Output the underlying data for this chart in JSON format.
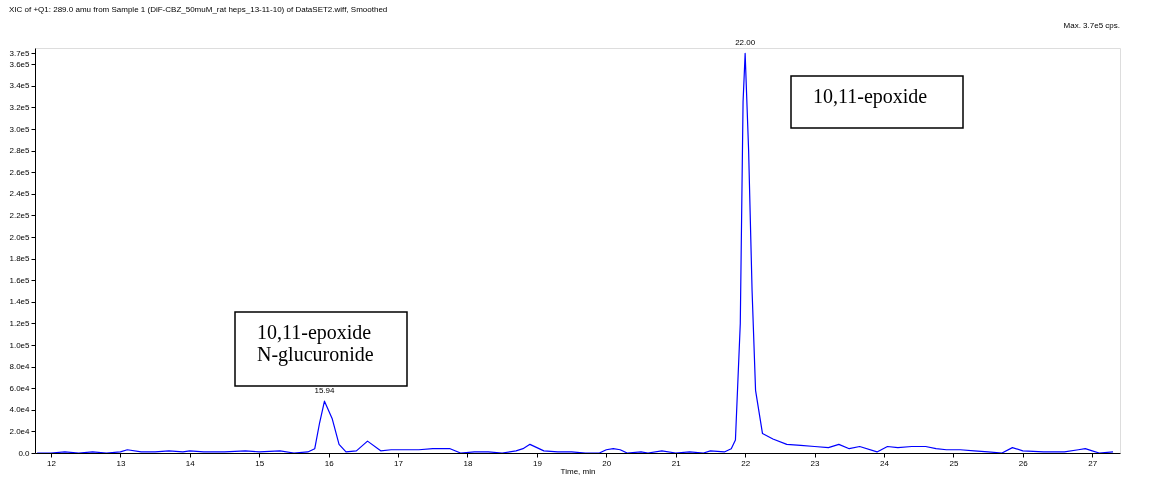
{
  "chart_data": {
    "type": "line",
    "title": "XIC of +Q1: 289.0 amu from Sample 1 (DiF-CBZ_50muM_rat heps_13-11-10) of DataSET2.wiff, Smoothed",
    "xlabel": "Time, min",
    "x": [
      11.8,
      12.0,
      12.2,
      12.4,
      12.6,
      12.8,
      13.0,
      13.1,
      13.3,
      13.5,
      13.7,
      13.9,
      14.0,
      14.2,
      14.5,
      14.8,
      15.0,
      15.3,
      15.5,
      15.7,
      15.8,
      15.87,
      15.94,
      16.05,
      16.15,
      16.25,
      16.4,
      16.56,
      16.75,
      16.9,
      17.1,
      17.3,
      17.5,
      17.75,
      17.9,
      18.1,
      18.3,
      18.5,
      18.7,
      18.8,
      18.9,
      19.0,
      19.1,
      19.3,
      19.5,
      19.7,
      19.9,
      20.0,
      20.1,
      20.2,
      20.3,
      20.5,
      20.6,
      20.8,
      21.0,
      21.2,
      21.4,
      21.5,
      21.7,
      21.8,
      21.86,
      21.93,
      21.97,
      22.0,
      22.05,
      22.1,
      22.15,
      22.25,
      22.4,
      22.6,
      22.8,
      23.0,
      23.2,
      23.35,
      23.5,
      23.65,
      23.9,
      24.05,
      24.2,
      24.4,
      24.6,
      24.75,
      24.9,
      25.1,
      25.3,
      25.5,
      25.7,
      25.85,
      26.0,
      26.3,
      26.6,
      26.8,
      26.9,
      27.0,
      27.1,
      27.3
    ],
    "series": [
      {
        "color": "#0000ff",
        "values": [
          0,
          0,
          1000,
          0,
          1000,
          0,
          1000,
          3000,
          1000,
          1000,
          2000,
          1000,
          2000,
          1000,
          1000,
          2000,
          1000,
          2000,
          0,
          1000,
          4000,
          28000,
          48000,
          32000,
          8000,
          1000,
          2000,
          11000,
          2000,
          3000,
          3000,
          3000,
          4000,
          4000,
          0,
          1000,
          1000,
          0,
          2000,
          4000,
          8000,
          5000,
          2000,
          1000,
          1000,
          0,
          0,
          3000,
          4000,
          3000,
          0,
          1000,
          0,
          2000,
          0,
          1000,
          0,
          2000,
          1000,
          4000,
          12000,
          120000,
          325000,
          370000,
          280000,
          150000,
          58000,
          18000,
          13000,
          8000,
          7000,
          6000,
          5000,
          8000,
          4000,
          6000,
          1000,
          6000,
          5000,
          6000,
          6000,
          4000,
          3000,
          3000,
          2000,
          1000,
          0,
          5000,
          2000,
          1000,
          1000,
          3000,
          4000,
          2000,
          0,
          1000
        ]
      }
    ],
    "xlim": [
      11.77,
      27.4
    ],
    "xticks": [
      12,
      13,
      14,
      15,
      16,
      17,
      18,
      19,
      20,
      21,
      22,
      23,
      24,
      25,
      26,
      27
    ],
    "ylim": [
      0,
      375000
    ],
    "yticks": [
      {
        "value": 0,
        "label": "0.0"
      },
      {
        "value": 20000,
        "label": "2.0e4"
      },
      {
        "value": 40000,
        "label": "4.0e4"
      },
      {
        "value": 60000,
        "label": "6.0e4"
      },
      {
        "value": 80000,
        "label": "8.0e4"
      },
      {
        "value": 100000,
        "label": "1.0e5"
      },
      {
        "value": 120000,
        "label": "1.2e5"
      },
      {
        "value": 140000,
        "label": "1.4e5"
      },
      {
        "value": 160000,
        "label": "1.6e5"
      },
      {
        "value": 180000,
        "label": "1.8e5"
      },
      {
        "value": 200000,
        "label": "2.0e5"
      },
      {
        "value": 220000,
        "label": "2.2e5"
      },
      {
        "value": 240000,
        "label": "2.4e5"
      },
      {
        "value": 260000,
        "label": "2.6e5"
      },
      {
        "value": 280000,
        "label": "2.8e5"
      },
      {
        "value": 300000,
        "label": "3.0e5"
      },
      {
        "value": 320000,
        "label": "3.2e5"
      },
      {
        "value": 340000,
        "label": "3.4e5"
      },
      {
        "value": 360000,
        "label": "3.6e5"
      },
      {
        "value": 370000,
        "label": "3.7e5"
      }
    ],
    "grid": false,
    "annotations": [
      {
        "text": "15.94",
        "x": 15.94,
        "y": 48000
      },
      {
        "text": "22.00",
        "x": 22.0,
        "y": 370000
      },
      "Max. 3.7e5 cps.",
      "10,11-epoxide",
      "10,11-epoxide\nN-glucuronide"
    ]
  }
}
